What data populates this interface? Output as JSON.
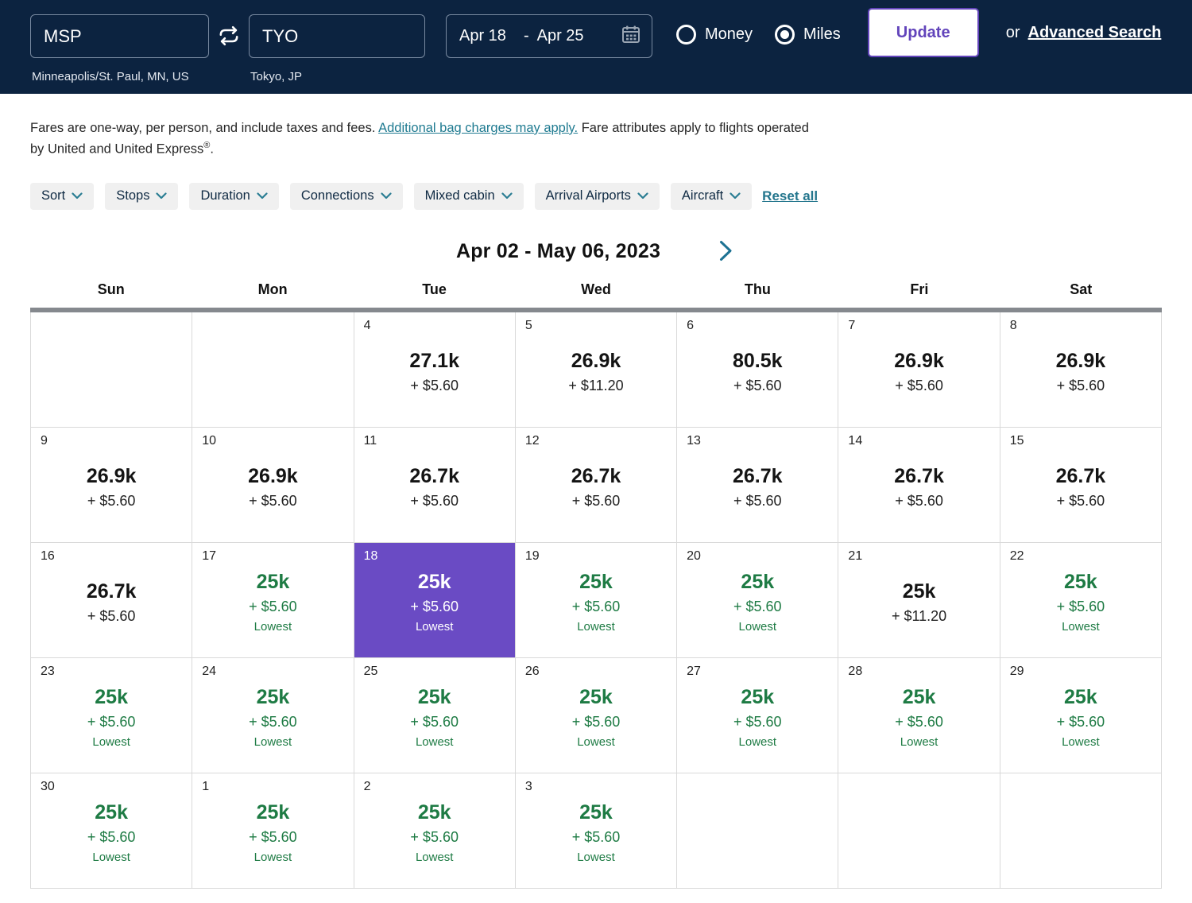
{
  "header": {
    "origin": {
      "code": "MSP",
      "city": "Minneapolis/St. Paul, MN, US"
    },
    "destination": {
      "code": "TYO",
      "city": "Tokyo, JP"
    },
    "dates": {
      "depart": "Apr 18",
      "separator": "-",
      "return": "Apr 25"
    },
    "payment": {
      "options": [
        {
          "label": "Money",
          "selected": false
        },
        {
          "label": "Miles",
          "selected": true
        }
      ]
    },
    "update_label": "Update",
    "or_label": "or",
    "advanced_label": "Advanced Search"
  },
  "disclaimer": {
    "part1": "Fares are one-way, per person, and include taxes and fees. ",
    "link": "Additional bag charges may apply.",
    "part2": " Fare attributes apply to flights operated",
    "part3": "by United and United Express",
    "reg": "®",
    "part4": "."
  },
  "filters": {
    "chips": [
      {
        "label": "Sort"
      },
      {
        "label": "Stops"
      },
      {
        "label": "Duration"
      },
      {
        "label": "Connections"
      },
      {
        "label": "Mixed cabin"
      },
      {
        "label": "Arrival Airports"
      },
      {
        "label": "Aircraft"
      }
    ],
    "reset": "Reset all"
  },
  "calendar": {
    "title": "Apr 02 - May 06, 2023",
    "day_headers": [
      "Sun",
      "Mon",
      "Tue",
      "Wed",
      "Thu",
      "Fri",
      "Sat"
    ],
    "weeks": [
      [
        {
          "state": "empty"
        },
        {
          "state": "empty"
        },
        {
          "day": "4",
          "miles": "27.1k",
          "fee": "+ $5.60",
          "state": "standard"
        },
        {
          "day": "5",
          "miles": "26.9k",
          "fee": "+ $11.20",
          "state": "standard"
        },
        {
          "day": "6",
          "miles": "80.5k",
          "fee": "+ $5.60",
          "state": "standard"
        },
        {
          "day": "7",
          "miles": "26.9k",
          "fee": "+ $5.60",
          "state": "standard"
        },
        {
          "day": "8",
          "miles": "26.9k",
          "fee": "+ $5.60",
          "state": "standard"
        }
      ],
      [
        {
          "day": "9",
          "miles": "26.9k",
          "fee": "+ $5.60",
          "state": "standard"
        },
        {
          "day": "10",
          "miles": "26.9k",
          "fee": "+ $5.60",
          "state": "standard"
        },
        {
          "day": "11",
          "miles": "26.7k",
          "fee": "+ $5.60",
          "state": "standard"
        },
        {
          "day": "12",
          "miles": "26.7k",
          "fee": "+ $5.60",
          "state": "standard"
        },
        {
          "day": "13",
          "miles": "26.7k",
          "fee": "+ $5.60",
          "state": "standard"
        },
        {
          "day": "14",
          "miles": "26.7k",
          "fee": "+ $5.60",
          "state": "standard"
        },
        {
          "day": "15",
          "miles": "26.7k",
          "fee": "+ $5.60",
          "state": "standard"
        }
      ],
      [
        {
          "day": "16",
          "miles": "26.7k",
          "fee": "+ $5.60",
          "state": "standard"
        },
        {
          "day": "17",
          "miles": "25k",
          "fee": "+ $5.60",
          "lowest": "Lowest",
          "state": "deal"
        },
        {
          "day": "18",
          "miles": "25k",
          "fee": "+ $5.60",
          "lowest": "Lowest",
          "state": "selected"
        },
        {
          "day": "19",
          "miles": "25k",
          "fee": "+ $5.60",
          "lowest": "Lowest",
          "state": "deal"
        },
        {
          "day": "20",
          "miles": "25k",
          "fee": "+ $5.60",
          "lowest": "Lowest",
          "state": "deal"
        },
        {
          "day": "21",
          "miles": "25k",
          "fee": "+ $11.20",
          "state": "standard"
        },
        {
          "day": "22",
          "miles": "25k",
          "fee": "+ $5.60",
          "lowest": "Lowest",
          "state": "deal"
        }
      ],
      [
        {
          "day": "23",
          "miles": "25k",
          "fee": "+ $5.60",
          "lowest": "Lowest",
          "state": "deal"
        },
        {
          "day": "24",
          "miles": "25k",
          "fee": "+ $5.60",
          "lowest": "Lowest",
          "state": "deal"
        },
        {
          "day": "25",
          "miles": "25k",
          "fee": "+ $5.60",
          "lowest": "Lowest",
          "state": "deal"
        },
        {
          "day": "26",
          "miles": "25k",
          "fee": "+ $5.60",
          "lowest": "Lowest",
          "state": "deal"
        },
        {
          "day": "27",
          "miles": "25k",
          "fee": "+ $5.60",
          "lowest": "Lowest",
          "state": "deal"
        },
        {
          "day": "28",
          "miles": "25k",
          "fee": "+ $5.60",
          "lowest": "Lowest",
          "state": "deal"
        },
        {
          "day": "29",
          "miles": "25k",
          "fee": "+ $5.60",
          "lowest": "Lowest",
          "state": "deal"
        }
      ],
      [
        {
          "day": "30",
          "miles": "25k",
          "fee": "+ $5.60",
          "lowest": "Lowest",
          "state": "deal"
        },
        {
          "day": "1",
          "miles": "25k",
          "fee": "+ $5.60",
          "lowest": "Lowest",
          "state": "deal"
        },
        {
          "day": "2",
          "miles": "25k",
          "fee": "+ $5.60",
          "lowest": "Lowest",
          "state": "deal"
        },
        {
          "day": "3",
          "miles": "25k",
          "fee": "+ $5.60",
          "lowest": "Lowest",
          "state": "deal"
        },
        {
          "state": "empty"
        },
        {
          "state": "empty"
        },
        {
          "state": "empty"
        }
      ]
    ]
  },
  "colors": {
    "header_navy": "#0c2340",
    "selected_purple": "#6a4bc4",
    "button_purple": "#6244bb",
    "deal_green": "#1e7b44",
    "link_teal": "#1e7a90",
    "grid_line": "#d9d9d9",
    "header_bar_gray": "#85898e"
  }
}
